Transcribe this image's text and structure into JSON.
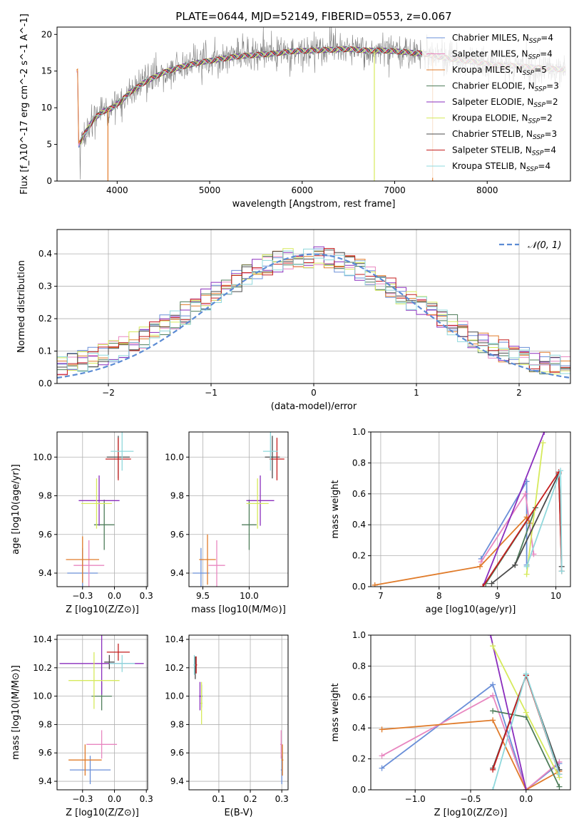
{
  "title": "PLATE=0644, MJD=52149, FIBERID=0553, z=0.067",
  "colors": {
    "Chabrier MILES": "#6a8fd8",
    "Salpeter MILES": "#e887c0",
    "Kroupa MILES": "#e07b2a",
    "Chabrier ELODIE": "#4f7d5b",
    "Salpeter ELODIE": "#8a2dbd",
    "Kroupa ELODIE": "#d6ea5c",
    "Chabrier STELIB": "#4b4b4b",
    "Salpeter STELIB": "#c41e1e",
    "Kroupa STELIB": "#8fd8dc"
  },
  "chart_data": [
    {
      "id": "spectrum",
      "type": "line",
      "xlabel": "wavelength [Angstrom, rest frame]",
      "ylabel": "Flux [f_λ10^-17 erg cm^-2 s^-1 A^-1]",
      "xlim": [
        3350,
        8900
      ],
      "ylim": [
        0,
        21
      ],
      "xticks": [
        4000,
        5000,
        6000,
        7000,
        8000
      ],
      "yticks": [
        0,
        5,
        10,
        15,
        20
      ],
      "grid": false,
      "legend_position": "right",
      "legend": [
        {
          "label": "Chabrier MILES, N",
          "sub": "SSP",
          "tail": "=4"
        },
        {
          "label": "Salpeter MILES, N",
          "sub": "SSP",
          "tail": "=4"
        },
        {
          "label": "Kroupa MILES, N",
          "sub": "SSP",
          "tail": "=5"
        },
        {
          "label": "Chabrier ELODIE, N",
          "sub": "SSP",
          "tail": "=3"
        },
        {
          "label": "Salpeter ELODIE, N",
          "sub": "SSP",
          "tail": "=2"
        },
        {
          "label": "Kroupa ELODIE, N",
          "sub": "SSP",
          "tail": "=2"
        },
        {
          "label": "Chabrier STELIB, N",
          "sub": "SSP",
          "tail": "=3"
        },
        {
          "label": "Salpeter STELIB, N",
          "sub": "SSP",
          "tail": "=4"
        },
        {
          "label": "Kroupa STELIB, N",
          "sub": "SSP",
          "tail": "=4"
        }
      ],
      "continuum": [
        [
          3580,
          4.8
        ],
        [
          3650,
          6.5
        ],
        [
          3750,
          8.5
        ],
        [
          3850,
          9.5
        ],
        [
          3950,
          10.0
        ],
        [
          4050,
          11.0
        ],
        [
          4150,
          12.2
        ],
        [
          4300,
          13.5
        ],
        [
          4500,
          14.8
        ],
        [
          4700,
          15.6
        ],
        [
          4900,
          16.2
        ],
        [
          5100,
          16.6
        ],
        [
          5300,
          17.0
        ],
        [
          5500,
          17.2
        ],
        [
          5700,
          17.4
        ],
        [
          5900,
          17.7
        ],
        [
          6100,
          17.8
        ],
        [
          6300,
          17.9
        ],
        [
          6500,
          18.0
        ],
        [
          6700,
          17.8
        ],
        [
          6900,
          17.8
        ],
        [
          7100,
          17.6
        ],
        [
          7300,
          17.4
        ],
        [
          7500,
          16.9
        ],
        [
          7700,
          16.5
        ],
        [
          7900,
          16.2
        ],
        [
          8100,
          15.8
        ],
        [
          8300,
          15.7
        ],
        [
          8500,
          15.5
        ],
        [
          8700,
          15.3
        ],
        [
          8850,
          15.2
        ]
      ]
    },
    {
      "id": "residuals",
      "type": "histogram",
      "xlabel": "(data-model)/error",
      "ylabel": "Normed distribution",
      "xlim": [
        -2.5,
        2.5
      ],
      "ylim": [
        0,
        0.475
      ],
      "xticks": [
        -2,
        -1,
        0,
        1,
        2
      ],
      "yticks": [
        0.0,
        0.1,
        0.2,
        0.3,
        0.4
      ],
      "grid": true,
      "legend_position": "top-right",
      "legend": [
        "N(0,1)"
      ],
      "bins": 50,
      "seed_note": "step histograms per model, one dashed unit normal curve"
    },
    {
      "id": "age-vs-Z",
      "type": "errorbar",
      "xlabel": "Z [log10(Z/Z⊙)]",
      "ylabel": "age [log10(age/yr)]",
      "xlim": [
        -0.45,
        0.26
      ],
      "ylim": [
        9.33,
        10.13
      ],
      "xticks": [
        -0.25,
        0.0,
        0.25
      ],
      "yticks": [
        9.4,
        9.6,
        9.8,
        10.0
      ],
      "grid": true,
      "points": [
        {
          "model": "Chabrier MILES",
          "x": -0.25,
          "xe": 0.12,
          "y": 9.4,
          "ye": 0.13
        },
        {
          "model": "Salpeter MILES",
          "x": -0.2,
          "xe": 0.12,
          "y": 9.44,
          "ye": 0.13
        },
        {
          "model": "Kroupa MILES",
          "x": -0.25,
          "xe": 0.13,
          "y": 9.47,
          "ye": 0.12
        },
        {
          "model": "Chabrier ELODIE",
          "x": -0.08,
          "xe": 0.08,
          "y": 9.65,
          "ye": 0.13
        },
        {
          "model": "Salpeter ELODIE",
          "x": -0.12,
          "xe": 0.16,
          "y": 9.775,
          "ye": 0.13
        },
        {
          "model": "Kroupa ELODIE",
          "x": -0.14,
          "xe": 0.12,
          "y": 9.76,
          "ye": 0.13
        },
        {
          "model": "Chabrier STELIB",
          "x": 0.03,
          "xe": 0.09,
          "y": 10.0,
          "ye": 0.11
        },
        {
          "model": "Salpeter STELIB",
          "x": 0.03,
          "xe": 0.1,
          "y": 9.99,
          "ye": 0.11
        },
        {
          "model": "Kroupa STELIB",
          "x": 0.06,
          "xe": 0.09,
          "y": 10.03,
          "ye": 0.1
        }
      ]
    },
    {
      "id": "age-vs-mass",
      "type": "errorbar",
      "xlabel": "mass [log10(M/M⊙)]",
      "ylabel": "",
      "xlim": [
        9.35,
        10.42
      ],
      "ylim": [
        9.33,
        10.13
      ],
      "xticks": [
        9.5,
        10.0
      ],
      "yticks": [
        9.4,
        9.6,
        9.8,
        10.0
      ],
      "grid": true,
      "points": [
        {
          "model": "Chabrier MILES",
          "x": 9.48,
          "xe": 0.09,
          "y": 9.4,
          "ye": 0.13
        },
        {
          "model": "Salpeter MILES",
          "x": 9.65,
          "xe": 0.09,
          "y": 9.44,
          "ye": 0.13
        },
        {
          "model": "Kroupa MILES",
          "x": 9.55,
          "xe": 0.09,
          "y": 9.47,
          "ye": 0.13
        },
        {
          "model": "Chabrier ELODIE",
          "x": 10.0,
          "xe": 0.08,
          "y": 9.65,
          "ye": 0.13
        },
        {
          "model": "Salpeter ELODIE",
          "x": 10.12,
          "xe": 0.15,
          "y": 9.775,
          "ye": 0.13
        },
        {
          "model": "Kroupa ELODIE",
          "x": 10.09,
          "xe": 0.12,
          "y": 9.76,
          "ye": 0.13
        },
        {
          "model": "Chabrier STELIB",
          "x": 10.25,
          "xe": 0.08,
          "y": 10.0,
          "ye": 0.11
        },
        {
          "model": "Salpeter STELIB",
          "x": 10.3,
          "xe": 0.08,
          "y": 9.99,
          "ye": 0.11
        },
        {
          "model": "Kroupa STELIB",
          "x": 10.23,
          "xe": 0.08,
          "y": 10.03,
          "ye": 0.1
        }
      ]
    },
    {
      "id": "weight-vs-age",
      "type": "line",
      "xlabel": "age [log10(age/yr)]",
      "ylabel": "mass weight",
      "xlim": [
        6.83,
        10.25
      ],
      "ylim": [
        0,
        1.0
      ],
      "xticks": [
        7,
        8,
        9,
        10
      ],
      "yticks": [
        0.0,
        0.2,
        0.4,
        0.6,
        0.8,
        1.0
      ],
      "grid": true,
      "series": [
        {
          "model": "Chabrier MILES",
          "x": [
            8.72,
            9.5,
            9.5
          ],
          "y": [
            0.18,
            0.68,
            0.14
          ]
        },
        {
          "model": "Salpeter MILES",
          "x": [
            8.72,
            9.48,
            9.62
          ],
          "y": [
            0.16,
            0.6,
            0.21
          ]
        },
        {
          "model": "Kroupa MILES",
          "x": [
            6.9,
            8.7,
            9.5,
            9.55
          ],
          "y": [
            0.01,
            0.13,
            0.45,
            0.41
          ]
        },
        {
          "model": "Chabrier ELODIE",
          "x": [
            8.8,
            9.65,
            9.3
          ],
          "y": [
            0.02,
            0.51,
            0.14
          ]
        },
        {
          "model": "Salpeter ELODIE",
          "x": [
            8.75,
            9.8
          ],
          "y": [
            0.0,
            1.0
          ]
        },
        {
          "model": "Kroupa ELODIE",
          "x": [
            9.5,
            9.78
          ],
          "y": [
            0.08,
            0.93
          ]
        },
        {
          "model": "Chabrier STELIB",
          "x": [
            8.9,
            9.3,
            10.05,
            10.1
          ],
          "y": [
            0.02,
            0.14,
            0.73,
            0.13
          ]
        },
        {
          "model": "Salpeter STELIB",
          "x": [
            8.75,
            10.05,
            10.1
          ],
          "y": [
            0.0,
            0.74,
            0.1
          ]
        },
        {
          "model": "Kroupa STELIB",
          "x": [
            9.5,
            10.08,
            10.1
          ],
          "y": [
            0.13,
            0.75,
            0.1
          ]
        }
      ]
    },
    {
      "id": "mass-vs-Z",
      "type": "errorbar",
      "xlabel": "Z [log10(Z/Z⊙)]",
      "ylabel": "mass [log10(M/M⊙)]",
      "xlim": [
        -0.45,
        0.26
      ],
      "ylim": [
        9.34,
        10.43
      ],
      "xticks": [
        -0.25,
        0.0,
        0.25
      ],
      "yticks": [
        9.4,
        9.6,
        9.8,
        10.0,
        10.2,
        10.4
      ],
      "grid": true,
      "points": [
        {
          "model": "Chabrier MILES",
          "x": -0.19,
          "xe": 0.16,
          "y": 9.48,
          "ye": 0.1
        },
        {
          "model": "Salpeter MILES",
          "x": -0.1,
          "xe": 0.12,
          "y": 9.66,
          "ye": 0.1
        },
        {
          "model": "Kroupa MILES",
          "x": -0.23,
          "xe": 0.13,
          "y": 9.55,
          "ye": 0.11
        },
        {
          "model": "Chabrier ELODIE",
          "x": -0.1,
          "xe": 0.08,
          "y": 10.0,
          "ye": 0.1
        },
        {
          "model": "Salpeter ELODIE",
          "x": -0.1,
          "xe": 0.33,
          "y": 10.23,
          "ye": 0.22
        },
        {
          "model": "Kroupa ELODIE",
          "x": -0.16,
          "xe": 0.2,
          "y": 10.11,
          "ye": 0.2
        },
        {
          "model": "Chabrier STELIB",
          "x": -0.04,
          "xe": 0.04,
          "y": 10.24,
          "ye": 0.05
        },
        {
          "model": "Salpeter STELIB",
          "x": 0.03,
          "xe": 0.09,
          "y": 10.31,
          "ye": 0.06
        },
        {
          "model": "Kroupa STELIB",
          "x": 0.06,
          "xe": 0.1,
          "y": 10.23,
          "ye": 0.06
        }
      ]
    },
    {
      "id": "mass-vs-ebv",
      "type": "errorbar",
      "xlabel": "E(B-V)",
      "ylabel": "",
      "xlim": [
        0.005,
        0.32
      ],
      "ylim": [
        9.34,
        10.43
      ],
      "xticks": [
        0.1,
        0.2,
        0.3
      ],
      "yticks": [
        9.4,
        9.6,
        9.8,
        10.0,
        10.2,
        10.4
      ],
      "grid": true,
      "points": [
        {
          "model": "Chabrier MILES",
          "x": 0.3,
          "xe": 0.003,
          "y": 9.48,
          "ye": 0.1
        },
        {
          "model": "Salpeter MILES",
          "x": 0.298,
          "xe": 0.003,
          "y": 9.66,
          "ye": 0.1
        },
        {
          "model": "Kroupa MILES",
          "x": 0.302,
          "xe": 0.003,
          "y": 9.55,
          "ye": 0.11
        },
        {
          "model": "Chabrier ELODIE",
          "x": 0.045,
          "xe": 0.003,
          "y": 10.0,
          "ye": 0.08
        },
        {
          "model": "Salpeter ELODIE",
          "x": 0.04,
          "xe": 0.003,
          "y": 10.0,
          "ye": 0.1
        },
        {
          "model": "Kroupa ELODIE",
          "x": 0.045,
          "xe": 0.003,
          "y": 9.95,
          "ye": 0.15
        },
        {
          "model": "Chabrier STELIB",
          "x": 0.025,
          "xe": 0.003,
          "y": 10.2,
          "ye": 0.08
        },
        {
          "model": "Salpeter STELIB",
          "x": 0.028,
          "xe": 0.003,
          "y": 10.22,
          "ye": 0.06
        },
        {
          "model": "Kroupa STELIB",
          "x": 0.022,
          "xe": 0.003,
          "y": 10.22,
          "ye": 0.07
        }
      ]
    },
    {
      "id": "weight-vs-Z",
      "type": "line",
      "xlabel": "Z [log10(Z/Z⊙)]",
      "ylabel": "mass weight",
      "xlim": [
        -1.4,
        0.4
      ],
      "ylim": [
        0,
        1.0
      ],
      "xticks": [
        -1.0,
        -0.5,
        0.0
      ],
      "yticks": [
        0.0,
        0.2,
        0.4,
        0.6,
        0.8,
        1.0
      ],
      "grid": true,
      "series": [
        {
          "model": "Chabrier MILES",
          "x": [
            -1.3,
            -0.3,
            0.0,
            0.3
          ],
          "y": [
            0.14,
            0.68,
            0.0,
            0.17
          ]
        },
        {
          "model": "Salpeter MILES",
          "x": [
            -1.3,
            -0.3,
            0.0,
            0.3
          ],
          "y": [
            0.22,
            0.61,
            0.0,
            0.18
          ]
        },
        {
          "model": "Kroupa MILES",
          "x": [
            -1.3,
            -0.3,
            0.0,
            0.3
          ],
          "y": [
            0.39,
            0.45,
            0.0,
            0.12
          ]
        },
        {
          "model": "Chabrier ELODIE",
          "x": [
            -0.3,
            0.0,
            0.3
          ],
          "y": [
            0.51,
            0.47,
            0.02
          ]
        },
        {
          "model": "Salpeter ELODIE",
          "x": [
            -0.32,
            0.0
          ],
          "y": [
            1.0,
            0.0
          ]
        },
        {
          "model": "Kroupa ELODIE",
          "x": [
            -0.3,
            0.0,
            0.3
          ],
          "y": [
            0.93,
            0.5,
            0.08
          ]
        },
        {
          "model": "Chabrier STELIB",
          "x": [
            -0.3,
            0.0,
            0.3
          ],
          "y": [
            0.14,
            0.74,
            0.13
          ]
        },
        {
          "model": "Salpeter STELIB",
          "x": [
            -0.3,
            0.0,
            0.3
          ],
          "y": [
            0.13,
            0.74,
            0.1
          ]
        },
        {
          "model": "Kroupa STELIB",
          "x": [
            -0.3,
            0.0,
            0.3
          ],
          "y": [
            0.0,
            0.75,
            0.1
          ]
        }
      ]
    }
  ]
}
